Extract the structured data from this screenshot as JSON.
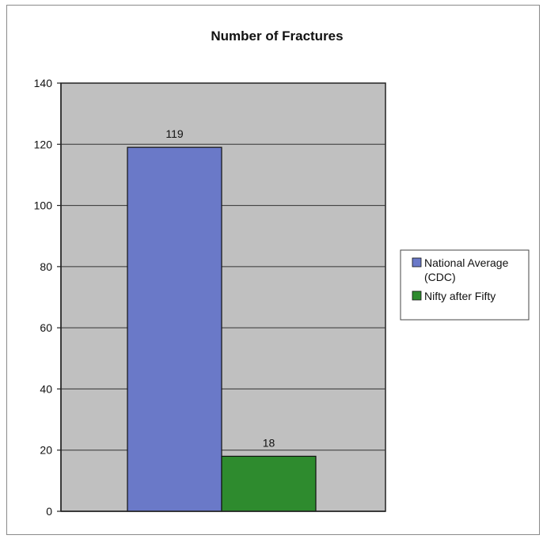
{
  "chart_data": {
    "type": "bar",
    "title": "Number of Fractures",
    "xlabel": "",
    "ylabel": "",
    "ylim": [
      0,
      140
    ],
    "yticks": [
      0,
      20,
      40,
      60,
      80,
      100,
      120,
      140
    ],
    "grid": true,
    "legend_position": "right",
    "plot_background": "#c0c0c0",
    "series": [
      {
        "name": "National Average (CDC)",
        "legend_lines": [
          "National Average",
          "(CDC)"
        ],
        "value": 119,
        "color": "#6a79c8"
      },
      {
        "name": "Nifty after Fifty",
        "legend_lines": [
          "Nifty after Fifty"
        ],
        "value": 18,
        "color": "#2e8b2e"
      }
    ]
  }
}
